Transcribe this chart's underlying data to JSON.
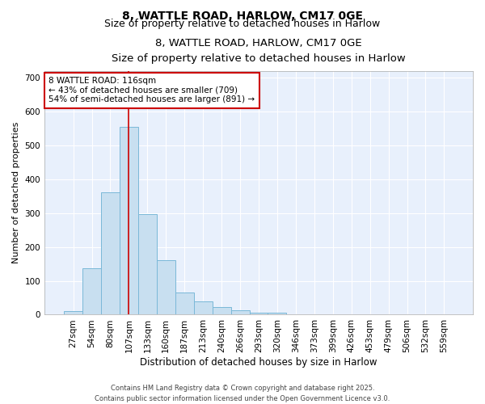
{
  "title_line1": "8, WATTLE ROAD, HARLOW, CM17 0GE",
  "title_line2": "Size of property relative to detached houses in Harlow",
  "xlabel": "Distribution of detached houses by size in Harlow",
  "ylabel": "Number of detached properties",
  "categories": [
    "27sqm",
    "54sqm",
    "80sqm",
    "107sqm",
    "133sqm",
    "160sqm",
    "187sqm",
    "213sqm",
    "240sqm",
    "266sqm",
    "293sqm",
    "320sqm",
    "346sqm",
    "373sqm",
    "399sqm",
    "426sqm",
    "453sqm",
    "479sqm",
    "506sqm",
    "532sqm",
    "559sqm"
  ],
  "values": [
    10,
    138,
    362,
    554,
    298,
    160,
    65,
    40,
    22,
    12,
    5,
    5,
    0,
    0,
    0,
    0,
    0,
    0,
    0,
    0,
    0
  ],
  "bar_color": "#c8dff0",
  "bar_edge_color": "#7ab8d8",
  "annotation_text": "8 WATTLE ROAD: 116sqm\n← 43% of detached houses are smaller (709)\n54% of semi-detached houses are larger (891) →",
  "annotation_box_color": "#ffffff",
  "annotation_box_edge": "#cc0000",
  "vline_x": 3,
  "vline_color": "#cc0000",
  "background_color": "#ffffff",
  "plot_bg_color": "#e8f0fc",
  "grid_color": "#ffffff",
  "footer_line1": "Contains HM Land Registry data © Crown copyright and database right 2025.",
  "footer_line2": "Contains public sector information licensed under the Open Government Licence v3.0.",
  "ylim": [
    0,
    720
  ],
  "yticks": [
    0,
    100,
    200,
    300,
    400,
    500,
    600,
    700
  ]
}
